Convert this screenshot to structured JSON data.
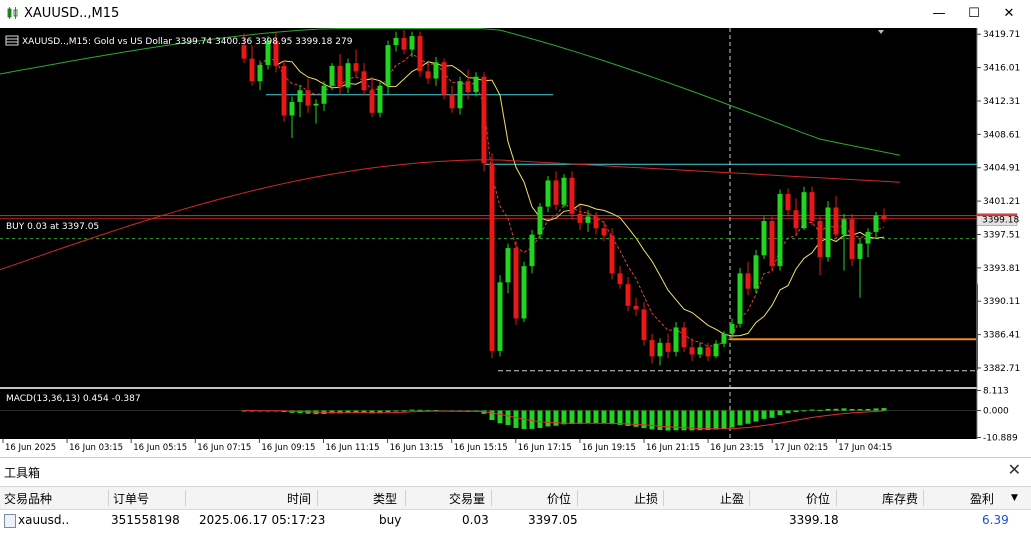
{
  "window": {
    "title": "XAUUSD..,M15",
    "min_label": "—",
    "max_label": "☐",
    "close_label": "✕"
  },
  "chart_data": {
    "type": "candlestick",
    "symbol_info": "XAUUSD..,M15:  Gold vs US Dollar  3399.74 3400.36 3398.95 3399.18  279",
    "ylim": [
      3380.6,
      3420.4
    ],
    "price_ticks": [
      "3419.71",
      "3416.01",
      "3412.31",
      "3408.61",
      "3404.91",
      "3401.21",
      "3397.51",
      "3393.81",
      "3390.11",
      "3386.41",
      "3382.71"
    ],
    "current_price": "3399.18",
    "time_labels": [
      "16 Jun 2025",
      "16 Jun 03:15",
      "16 Jun 05:15",
      "16 Jun 07:15",
      "16 Jun 09:15",
      "16 Jun 11:15",
      "16 Jun 13:15",
      "16 Jun 15:15",
      "16 Jun 17:15",
      "16 Jun 19:15",
      "16 Jun 21:15",
      "16 Jun 23:15",
      "17 Jun 02:15",
      "17 Jun 04:15"
    ],
    "trade_label": "BUY 0.03 at 3397.05",
    "trade_price": 3397.05,
    "candles": [
      {
        "o": 3418.5,
        "h": 3419.8,
        "l": 3416.5,
        "c": 3417.0
      },
      {
        "o": 3417.0,
        "h": 3418.5,
        "l": 3414.0,
        "c": 3414.5
      },
      {
        "o": 3414.5,
        "h": 3416.8,
        "l": 3413.5,
        "c": 3416.3
      },
      {
        "o": 3416.3,
        "h": 3419.5,
        "l": 3415.8,
        "c": 3419.0
      },
      {
        "o": 3419.0,
        "h": 3419.9,
        "l": 3415.5,
        "c": 3416.2
      },
      {
        "o": 3416.2,
        "h": 3416.8,
        "l": 3410.0,
        "c": 3410.7
      },
      {
        "o": 3410.7,
        "h": 3412.8,
        "l": 3408.2,
        "c": 3412.2
      },
      {
        "o": 3412.2,
        "h": 3414.0,
        "l": 3410.5,
        "c": 3413.5
      },
      {
        "o": 3413.5,
        "h": 3414.8,
        "l": 3411.0,
        "c": 3411.8
      },
      {
        "o": 3411.8,
        "h": 3412.5,
        "l": 3409.8,
        "c": 3412.0
      },
      {
        "o": 3412.0,
        "h": 3414.5,
        "l": 3411.2,
        "c": 3414.0
      },
      {
        "o": 3414.0,
        "h": 3416.5,
        "l": 3413.5,
        "c": 3416.2
      },
      {
        "o": 3416.2,
        "h": 3417.5,
        "l": 3413.0,
        "c": 3413.8
      },
      {
        "o": 3413.8,
        "h": 3417.0,
        "l": 3413.2,
        "c": 3416.5
      },
      {
        "o": 3416.5,
        "h": 3418.0,
        "l": 3415.0,
        "c": 3415.6
      },
      {
        "o": 3415.6,
        "h": 3416.5,
        "l": 3413.0,
        "c": 3413.5
      },
      {
        "o": 3413.5,
        "h": 3415.0,
        "l": 3410.5,
        "c": 3411.0
      },
      {
        "o": 3411.0,
        "h": 3414.5,
        "l": 3410.5,
        "c": 3414.0
      },
      {
        "o": 3414.0,
        "h": 3419.0,
        "l": 3413.0,
        "c": 3418.5
      },
      {
        "o": 3418.5,
        "h": 3420.0,
        "l": 3417.8,
        "c": 3419.3
      },
      {
        "o": 3419.3,
        "h": 3420.2,
        "l": 3417.5,
        "c": 3418.0
      },
      {
        "o": 3418.0,
        "h": 3420.0,
        "l": 3417.2,
        "c": 3419.5
      },
      {
        "o": 3419.5,
        "h": 3420.0,
        "l": 3415.0,
        "c": 3415.6
      },
      {
        "o": 3415.6,
        "h": 3416.5,
        "l": 3414.2,
        "c": 3414.8
      },
      {
        "o": 3414.8,
        "h": 3417.2,
        "l": 3414.0,
        "c": 3416.6
      },
      {
        "o": 3416.6,
        "h": 3417.0,
        "l": 3412.5,
        "c": 3413.0
      },
      {
        "o": 3413.0,
        "h": 3414.0,
        "l": 3411.0,
        "c": 3411.5
      },
      {
        "o": 3411.5,
        "h": 3415.0,
        "l": 3410.8,
        "c": 3414.5
      },
      {
        "o": 3414.5,
        "h": 3415.8,
        "l": 3412.5,
        "c": 3413.3
      },
      {
        "o": 3413.3,
        "h": 3415.5,
        "l": 3412.8,
        "c": 3415.0
      },
      {
        "o": 3415.0,
        "h": 3415.5,
        "l": 3404.5,
        "c": 3405.4
      },
      {
        "o": 3405.4,
        "h": 3406.5,
        "l": 3383.8,
        "c": 3384.6
      },
      {
        "o": 3384.6,
        "h": 3393.0,
        "l": 3384.0,
        "c": 3392.2
      },
      {
        "o": 3392.2,
        "h": 3396.5,
        "l": 3391.0,
        "c": 3396.0
      },
      {
        "o": 3396.0,
        "h": 3396.8,
        "l": 3387.5,
        "c": 3388.2
      },
      {
        "o": 3388.2,
        "h": 3394.5,
        "l": 3387.8,
        "c": 3394.0
      },
      {
        "o": 3394.0,
        "h": 3398.0,
        "l": 3393.2,
        "c": 3397.5
      },
      {
        "o": 3397.5,
        "h": 3401.0,
        "l": 3397.0,
        "c": 3400.6
      },
      {
        "o": 3400.6,
        "h": 3404.0,
        "l": 3400.0,
        "c": 3403.5
      },
      {
        "o": 3403.5,
        "h": 3404.5,
        "l": 3400.2,
        "c": 3400.8
      },
      {
        "o": 3400.8,
        "h": 3404.2,
        "l": 3400.5,
        "c": 3403.8
      },
      {
        "o": 3403.8,
        "h": 3404.5,
        "l": 3399.2,
        "c": 3399.8
      },
      {
        "o": 3399.8,
        "h": 3400.8,
        "l": 3398.0,
        "c": 3398.8
      },
      {
        "o": 3398.8,
        "h": 3400.2,
        "l": 3397.8,
        "c": 3399.5
      },
      {
        "o": 3399.5,
        "h": 3400.0,
        "l": 3397.5,
        "c": 3398.2
      },
      {
        "o": 3398.2,
        "h": 3399.0,
        "l": 3396.8,
        "c": 3397.4
      },
      {
        "o": 3397.4,
        "h": 3398.2,
        "l": 3392.5,
        "c": 3393.2
      },
      {
        "o": 3393.2,
        "h": 3394.0,
        "l": 3391.5,
        "c": 3392.0
      },
      {
        "o": 3392.0,
        "h": 3392.8,
        "l": 3389.0,
        "c": 3389.6
      },
      {
        "o": 3389.6,
        "h": 3390.5,
        "l": 3388.5,
        "c": 3389.2
      },
      {
        "o": 3389.2,
        "h": 3390.0,
        "l": 3385.2,
        "c": 3385.8
      },
      {
        "o": 3385.8,
        "h": 3386.5,
        "l": 3383.2,
        "c": 3384.0
      },
      {
        "o": 3384.0,
        "h": 3386.0,
        "l": 3383.0,
        "c": 3385.5
      },
      {
        "o": 3385.5,
        "h": 3386.5,
        "l": 3383.8,
        "c": 3384.5
      },
      {
        "o": 3384.5,
        "h": 3387.8,
        "l": 3384.0,
        "c": 3387.2
      },
      {
        "o": 3387.2,
        "h": 3387.8,
        "l": 3384.5,
        "c": 3385.0
      },
      {
        "o": 3385.0,
        "h": 3386.0,
        "l": 3383.5,
        "c": 3384.2
      },
      {
        "o": 3384.2,
        "h": 3385.5,
        "l": 3383.8,
        "c": 3385.0
      },
      {
        "o": 3385.0,
        "h": 3385.5,
        "l": 3383.5,
        "c": 3384.0
      },
      {
        "o": 3384.0,
        "h": 3385.8,
        "l": 3383.8,
        "c": 3385.4
      },
      {
        "o": 3385.4,
        "h": 3386.8,
        "l": 3385.0,
        "c": 3386.5
      },
      {
        "o": 3386.5,
        "h": 3388.2,
        "l": 3386.0,
        "c": 3387.6
      },
      {
        "o": 3387.6,
        "h": 3393.8,
        "l": 3387.2,
        "c": 3393.2
      },
      {
        "o": 3393.2,
        "h": 3394.5,
        "l": 3390.8,
        "c": 3391.5
      },
      {
        "o": 3391.5,
        "h": 3395.8,
        "l": 3391.0,
        "c": 3395.2
      },
      {
        "o": 3395.2,
        "h": 3399.5,
        "l": 3394.8,
        "c": 3399.0
      },
      {
        "o": 3399.0,
        "h": 3399.5,
        "l": 3393.5,
        "c": 3394.0
      },
      {
        "o": 3394.0,
        "h": 3402.5,
        "l": 3393.5,
        "c": 3402.0
      },
      {
        "o": 3402.0,
        "h": 3402.6,
        "l": 3399.5,
        "c": 3400.2
      },
      {
        "o": 3400.2,
        "h": 3401.5,
        "l": 3397.5,
        "c": 3398.2
      },
      {
        "o": 3398.2,
        "h": 3402.8,
        "l": 3398.0,
        "c": 3402.2
      },
      {
        "o": 3402.2,
        "h": 3402.8,
        "l": 3398.5,
        "c": 3399.0
      },
      {
        "o": 3399.0,
        "h": 3399.5,
        "l": 3393.0,
        "c": 3395.0
      },
      {
        "o": 3395.0,
        "h": 3401.2,
        "l": 3394.5,
        "c": 3400.5
      },
      {
        "o": 3400.5,
        "h": 3401.8,
        "l": 3397.0,
        "c": 3397.5
      },
      {
        "o": 3397.5,
        "h": 3399.8,
        "l": 3393.5,
        "c": 3399.2
      },
      {
        "o": 3399.2,
        "h": 3399.8,
        "l": 3394.0,
        "c": 3394.8
      },
      {
        "o": 3394.8,
        "h": 3397.0,
        "l": 3390.5,
        "c": 3396.5
      },
      {
        "o": 3396.5,
        "h": 3398.2,
        "l": 3395.0,
        "c": 3397.8
      },
      {
        "o": 3397.8,
        "h": 3400.0,
        "l": 3397.2,
        "c": 3399.6
      },
      {
        "o": 3399.6,
        "h": 3400.4,
        "l": 3398.9,
        "c": 3399.2
      }
    ],
    "macd": {
      "label": "MACD(13,36,13) 0.454 -0.387",
      "ticks": [
        "8.113",
        "0.000",
        "-10.889"
      ],
      "ylim": [
        -11.5,
        8.7
      ]
    }
  },
  "toolbox": {
    "title": "工具箱",
    "headers": [
      "交易品种",
      "订单号",
      "时间",
      "类型",
      "交易量",
      "价位",
      "止损",
      "止盈",
      "价位",
      "库存费",
      "盈利"
    ],
    "row": [
      "xauusd..",
      "351558198",
      "2025.06.17 05:17:23",
      "buy",
      "0.03",
      "3397.05",
      "",
      "",
      "3399.18",
      "",
      "6.39"
    ]
  }
}
